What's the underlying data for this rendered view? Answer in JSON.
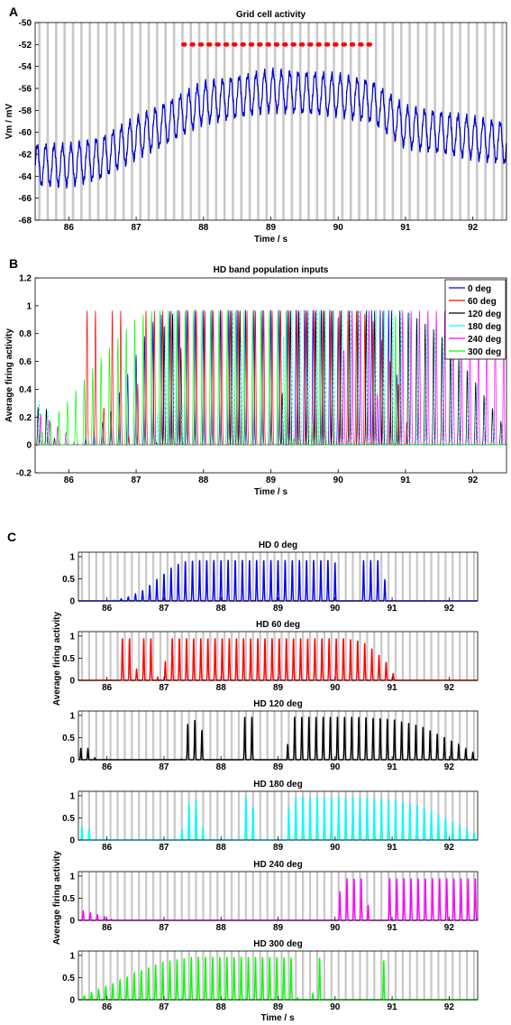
{
  "figure": {
    "panel_labels": [
      "A",
      "B",
      "C"
    ]
  },
  "colors": {
    "theta_band": "#c8c8c8",
    "grid": "#0000cc",
    "spike": "#ff0000",
    "deg0": "#0000ff",
    "deg60": "#ff0000",
    "deg120": "#000000",
    "deg180": "#00ffff",
    "deg240": "#ff00ff",
    "deg300": "#00ff00"
  },
  "chart_data": [
    {
      "type": "line",
      "panel": "A",
      "title": "Grid cell activity",
      "xlabel": "Time / s",
      "ylabel": "Vm / mV",
      "xlim": [
        85.5,
        92.5
      ],
      "ylim": [
        -68,
        -50
      ],
      "xticks": [
        86,
        87,
        88,
        89,
        90,
        91,
        92
      ],
      "yticks": [
        -68,
        -66,
        -64,
        -62,
        -60,
        -58,
        -56,
        -54,
        -52,
        -50
      ],
      "theta_freq_hz": 8,
      "series": [
        {
          "color": "blue",
          "oscillation_hz": 8,
          "amplitude_mV": 1.8,
          "baseline": {
            "x": [
              85.5,
              86.0,
              86.5,
              87.0,
              87.5,
              88.0,
              88.5,
              89.0,
              89.5,
              90.0,
              90.5,
              91.0,
              91.5,
              92.0,
              92.5
            ],
            "y": [
              -63.0,
              -63.0,
              -62.3,
              -60.5,
              -59.0,
              -57.3,
              -56.8,
              -56.2,
              -56.4,
              -56.6,
              -57.2,
              -59.5,
              -60.0,
              -60.5,
              -61.0
            ]
          }
        }
      ],
      "spikes": {
        "y": -52,
        "x_start": 87.7,
        "x_end": 90.55,
        "per_cycle": 3
      }
    },
    {
      "type": "line",
      "panel": "B",
      "title": "HD band population inputs",
      "xlabel": "Time / s",
      "ylabel": "Average firing activity",
      "xlim": [
        85.5,
        92.5
      ],
      "ylim": [
        -0.2,
        1.2
      ],
      "xticks": [
        86,
        87,
        88,
        89,
        90,
        91,
        92
      ],
      "yticks": [
        -0.2,
        0,
        0.2,
        0.4,
        0.6,
        0.8,
        1,
        1.2
      ],
      "legend_position": "top-right",
      "legend": [
        "0 deg",
        "60 deg",
        "120 deg",
        "180 deg",
        "240 deg",
        "300 deg"
      ]
    },
    {
      "type": "line",
      "panel": "C",
      "ylabel": "Average firing activity",
      "xlabel": "Time / s",
      "xlim": [
        85.5,
        92.5
      ],
      "ylim": [
        0,
        1.1
      ],
      "xticks": [
        86,
        87,
        88,
        89,
        90,
        91,
        92
      ],
      "yticks": [
        0,
        0.5,
        1
      ],
      "subplots": [
        {
          "title": "HD 0 deg",
          "color": "#0000ff",
          "env": {
            "x": [
              85.5,
              86.0,
              86.2,
              86.4,
              86.6,
              86.8,
              87.0,
              87.2,
              87.4,
              87.6,
              89.9,
              90.0,
              90.05,
              90.4,
              90.45,
              90.85,
              90.9,
              92.5
            ],
            "y": [
              0,
              0,
              0.03,
              0.1,
              0.2,
              0.4,
              0.6,
              0.8,
              0.88,
              0.9,
              0.9,
              0.85,
              0,
              0,
              0.9,
              0.9,
              0,
              0
            ]
          }
        },
        {
          "title": "HD 60 deg",
          "color": "#ff0000",
          "env": {
            "x": [
              85.5,
              86.2,
              86.25,
              86.4,
              86.45,
              86.55,
              86.6,
              86.8,
              86.9,
              87.0,
              87.05,
              90.2,
              90.5,
              90.7,
              90.9,
              91.0,
              91.05,
              92.5
            ],
            "y": [
              0,
              0,
              0.93,
              0.93,
              0.25,
              0.25,
              0.93,
              0.93,
              0,
              0,
              0.93,
              0.93,
              0.85,
              0.65,
              0.4,
              0.25,
              0,
              0
            ]
          }
        },
        {
          "title": "HD 120 deg",
          "color": "#000000",
          "env": {
            "x": [
              85.5,
              85.55,
              85.75,
              85.8,
              87.3,
              87.35,
              87.65,
              87.7,
              88.35,
              88.4,
              88.55,
              88.6,
              89.15,
              89.2,
              90.4,
              91.0,
              91.5,
              92.0,
              92.5
            ],
            "y": [
              0,
              0.3,
              0.2,
              0,
              0,
              0.75,
              0.95,
              0,
              0,
              0.95,
              0.95,
              0,
              0,
              0.95,
              0.95,
              0.9,
              0.75,
              0.45,
              0.1
            ]
          }
        },
        {
          "title": "HD 180 deg",
          "color": "#00ffff",
          "env": {
            "x": [
              85.5,
              85.55,
              85.75,
              85.8,
              87.3,
              87.35,
              87.65,
              87.7,
              88.35,
              88.4,
              88.55,
              88.6,
              89.15,
              89.2,
              90.4,
              91.0,
              91.5,
              92.0,
              92.5
            ],
            "y": [
              0,
              0.3,
              0.2,
              0,
              0,
              0.75,
              0.95,
              0,
              0,
              0.95,
              0.95,
              0,
              0,
              0.95,
              0.95,
              0.9,
              0.75,
              0.45,
              0.1
            ]
          }
        },
        {
          "title": "HD 240 deg",
          "color": "#ff00ff",
          "env": {
            "x": [
              85.5,
              85.55,
              86.05,
              86.1,
              90.05,
              90.1,
              90.55,
              90.6,
              90.9,
              90.95,
              92.5
            ],
            "y": [
              0,
              0.22,
              0.05,
              0,
              0,
              0.93,
              0.93,
              0,
              0,
              0.93,
              0.93
            ]
          }
        },
        {
          "title": "HD 300 deg",
          "color": "#00ff00",
          "env": {
            "x": [
              85.5,
              85.65,
              86.0,
              86.5,
              87.0,
              87.5,
              88.5,
              89.3,
              89.35,
              89.6,
              89.65,
              89.75,
              89.8,
              90.8,
              90.85,
              90.9,
              92.5
            ],
            "y": [
              0,
              0.12,
              0.3,
              0.6,
              0.85,
              0.95,
              0.95,
              0.93,
              0,
              0,
              0.93,
              0.93,
              0,
              0,
              0.93,
              0,
              0
            ]
          }
        }
      ]
    }
  ]
}
